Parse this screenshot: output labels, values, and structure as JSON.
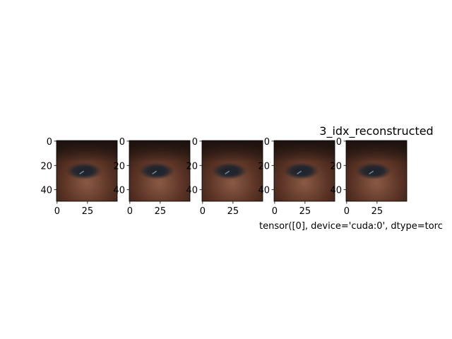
{
  "chart_data": [
    {
      "type": "image",
      "xlim": [
        -0.5,
        49.5
      ],
      "ylim": [
        49.5,
        -0.5
      ],
      "xticks": [
        0,
        25
      ],
      "yticks": [
        0,
        20,
        40
      ]
    },
    {
      "type": "image",
      "xlim": [
        -0.5,
        49.5
      ],
      "ylim": [
        49.5,
        -0.5
      ],
      "xticks": [
        0,
        25
      ],
      "yticks": [
        0,
        20,
        40
      ]
    },
    {
      "type": "image",
      "xlim": [
        -0.5,
        49.5
      ],
      "ylim": [
        49.5,
        -0.5
      ],
      "xticks": [
        0,
        25
      ],
      "yticks": [
        0,
        20,
        40
      ]
    },
    {
      "type": "image",
      "xlim": [
        -0.5,
        49.5
      ],
      "ylim": [
        49.5,
        -0.5
      ],
      "xticks": [
        0,
        25
      ],
      "yticks": [
        0,
        20,
        40
      ]
    },
    {
      "type": "image",
      "title": "3_idx_reconstructed",
      "x_label": "tensor([0], device='cuda:0', dtype=torc",
      "xlim": [
        -0.5,
        49.5
      ],
      "ylim": [
        49.5,
        -0.5
      ],
      "xticks": [
        0,
        25
      ],
      "yticks": [
        0,
        20,
        40
      ]
    }
  ]
}
